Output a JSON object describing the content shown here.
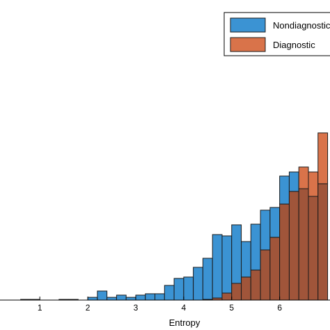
{
  "chart_data": {
    "type": "bar",
    "subtype": "overlaid-histogram",
    "title": "",
    "xlabel": "Entropy",
    "ylabel": "",
    "x_ticks": [
      "1",
      "2",
      "3",
      "4",
      "5",
      "6"
    ],
    "xlim": [
      0.17,
      7.05
    ],
    "ylim": [
      0,
      1
    ],
    "y_unit": "relative height (no y-axis labels shown)",
    "grid": false,
    "legend_position": "top-right",
    "bin_width": 0.2,
    "colors": {
      "Nondiagnostic": "#3b93d3",
      "Diagnostic": "#d9734a",
      "overlap": "#a0553a",
      "edge": "#1a1a1a"
    },
    "series": [
      {
        "name": "Nondiagnostic",
        "color": "#3b93d3",
        "bins": [
          {
            "x0": 0.6,
            "value": 0.004
          },
          {
            "x0": 0.8,
            "value": 0.004
          },
          {
            "x0": 1.0,
            "value": 0.0
          },
          {
            "x0": 1.2,
            "value": 0.0
          },
          {
            "x0": 1.4,
            "value": 0.004
          },
          {
            "x0": 1.6,
            "value": 0.004
          },
          {
            "x0": 1.8,
            "value": 0.0
          },
          {
            "x0": 2.0,
            "value": 0.016
          },
          {
            "x0": 2.2,
            "value": 0.053
          },
          {
            "x0": 2.4,
            "value": 0.016
          },
          {
            "x0": 2.6,
            "value": 0.029
          },
          {
            "x0": 2.8,
            "value": 0.016
          },
          {
            "x0": 3.0,
            "value": 0.029
          },
          {
            "x0": 3.2,
            "value": 0.037
          },
          {
            "x0": 3.4,
            "value": 0.037
          },
          {
            "x0": 3.6,
            "value": 0.086
          },
          {
            "x0": 3.8,
            "value": 0.127
          },
          {
            "x0": 4.0,
            "value": 0.135
          },
          {
            "x0": 4.2,
            "value": 0.192
          },
          {
            "x0": 4.4,
            "value": 0.245
          },
          {
            "x0": 4.6,
            "value": 0.384
          },
          {
            "x0": 4.8,
            "value": 0.376
          },
          {
            "x0": 5.0,
            "value": 0.441
          },
          {
            "x0": 5.2,
            "value": 0.343
          },
          {
            "x0": 5.4,
            "value": 0.445
          },
          {
            "x0": 5.6,
            "value": 0.527
          },
          {
            "x0": 5.8,
            "value": 0.543
          },
          {
            "x0": 6.0,
            "value": 0.727
          },
          {
            "x0": 6.2,
            "value": 0.751
          },
          {
            "x0": 6.4,
            "value": 0.653
          },
          {
            "x0": 6.6,
            "value": 0.608
          },
          {
            "x0": 6.8,
            "value": 0.682
          }
        ]
      },
      {
        "name": "Diagnostic",
        "color": "#d9734a",
        "bins": [
          {
            "x0": 4.4,
            "value": 0.004
          },
          {
            "x0": 4.6,
            "value": 0.012
          },
          {
            "x0": 4.8,
            "value": 0.041
          },
          {
            "x0": 5.0,
            "value": 0.098
          },
          {
            "x0": 5.2,
            "value": 0.135
          },
          {
            "x0": 5.4,
            "value": 0.176
          },
          {
            "x0": 5.6,
            "value": 0.294
          },
          {
            "x0": 5.8,
            "value": 0.368
          },
          {
            "x0": 6.0,
            "value": 0.563
          },
          {
            "x0": 6.2,
            "value": 0.637
          },
          {
            "x0": 6.4,
            "value": 0.78
          },
          {
            "x0": 6.6,
            "value": 0.751
          },
          {
            "x0": 6.8,
            "value": 0.98
          }
        ]
      }
    ]
  }
}
